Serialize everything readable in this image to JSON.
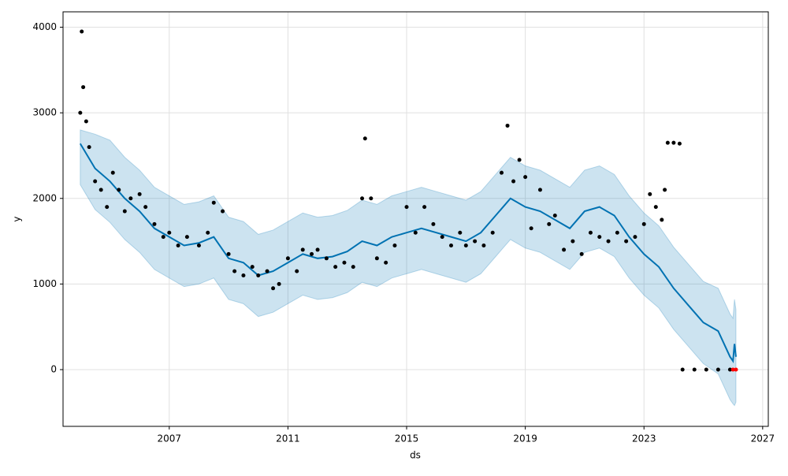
{
  "chart_data": {
    "type": "forecast",
    "xlabel": "ds",
    "ylabel": "y",
    "xlim": [
      2003.42,
      2027.19
    ],
    "ylim": [
      -663,
      4180
    ],
    "xticks": [
      2007,
      2011,
      2015,
      2019,
      2023,
      2027
    ],
    "yticks": [
      0,
      1000,
      2000,
      3000,
      4000
    ],
    "grid": true,
    "series": [
      {
        "kind": "scatter",
        "color": "#000000",
        "x": [
          2004.0,
          2004.05,
          2004.1,
          2004.2,
          2004.3,
          2004.5,
          2004.7,
          2004.9,
          2005.1,
          2005.3,
          2005.5,
          2005.7,
          2006.0,
          2006.2,
          2006.5,
          2006.8,
          2007.0,
          2007.3,
          2007.6,
          2008.0,
          2008.3,
          2008.5,
          2008.8,
          2009.0,
          2009.2,
          2009.5,
          2009.8,
          2010.0,
          2010.3,
          2010.5,
          2010.7,
          2011.0,
          2011.3,
          2011.5,
          2011.8,
          2012.0,
          2012.3,
          2012.6,
          2012.9,
          2013.2,
          2013.5,
          2013.6,
          2013.8,
          2014.0,
          2014.3,
          2014.6,
          2015.0,
          2015.3,
          2015.6,
          2015.9,
          2016.2,
          2016.5,
          2016.8,
          2017.0,
          2017.3,
          2017.6,
          2017.9,
          2018.2,
          2018.4,
          2018.6,
          2018.8,
          2019.0,
          2019.2,
          2019.5,
          2019.8,
          2020.0,
          2020.3,
          2020.6,
          2020.9,
          2021.2,
          2021.5,
          2021.8,
          2022.1,
          2022.4,
          2022.7,
          2023.0,
          2023.2,
          2023.4,
          2023.6,
          2023.7,
          2023.8,
          2024.0,
          2024.2,
          2024.3,
          2024.7,
          2025.1,
          2025.5,
          2025.9
        ],
        "values": [
          3000,
          3950,
          3300,
          2900,
          2600,
          2200,
          2100,
          1900,
          2300,
          2100,
          1850,
          2000,
          2050,
          1900,
          1700,
          1550,
          1600,
          1450,
          1550,
          1450,
          1600,
          1950,
          1850,
          1350,
          1150,
          1100,
          1200,
          1100,
          1150,
          950,
          1000,
          1300,
          1150,
          1400,
          1350,
          1400,
          1300,
          1200,
          1250,
          1200,
          2000,
          2700,
          2000,
          1300,
          1250,
          1450,
          1900,
          1600,
          1900,
          1700,
          1550,
          1450,
          1600,
          1450,
          1500,
          1450,
          1600,
          2300,
          2850,
          2200,
          2450,
          2250,
          1650,
          2100,
          1700,
          1800,
          1400,
          1500,
          1350,
          1600,
          1550,
          1500,
          1600,
          1500,
          1550,
          1700,
          2050,
          1900,
          1750,
          2100,
          2650,
          2650,
          2640,
          0,
          0,
          0,
          0,
          0
        ]
      },
      {
        "kind": "scatter",
        "color": "#ff0000",
        "x": [
          2026.0,
          2026.1
        ],
        "values": [
          0,
          0
        ]
      },
      {
        "kind": "line",
        "color": "#0072b2",
        "x": [
          2004.0,
          2004.5,
          2005,
          2005.5,
          2006,
          2006.5,
          2007,
          2007.5,
          2008,
          2008.5,
          2009,
          2009.5,
          2010,
          2010.5,
          2011,
          2011.5,
          2012,
          2012.5,
          2013,
          2013.5,
          2014,
          2014.5,
          2015,
          2015.5,
          2016,
          2016.5,
          2017,
          2017.5,
          2018,
          2018.5,
          2019,
          2019.5,
          2020,
          2020.5,
          2021,
          2021.5,
          2022,
          2022.5,
          2023,
          2023.5,
          2024,
          2024.5,
          2025,
          2025.5,
          2025.9,
          2026.0,
          2026.05,
          2026.1
        ],
        "values": [
          2640,
          2350,
          2200,
          2000,
          1850,
          1650,
          1550,
          1450,
          1480,
          1550,
          1300,
          1250,
          1100,
          1150,
          1250,
          1350,
          1300,
          1320,
          1380,
          1500,
          1450,
          1550,
          1600,
          1650,
          1600,
          1550,
          1500,
          1600,
          1800,
          2000,
          1900,
          1850,
          1750,
          1650,
          1850,
          1900,
          1800,
          1550,
          1350,
          1200,
          950,
          750,
          550,
          450,
          150,
          100,
          300,
          150
        ],
        "lower": [
          2160,
          1870,
          1720,
          1520,
          1370,
          1170,
          1070,
          970,
          1000,
          1070,
          820,
          770,
          620,
          670,
          770,
          870,
          820,
          840,
          900,
          1020,
          970,
          1070,
          1120,
          1170,
          1120,
          1070,
          1020,
          1120,
          1320,
          1520,
          1420,
          1370,
          1270,
          1170,
          1370,
          1420,
          1320,
          1070,
          870,
          720,
          470,
          270,
          70,
          -50,
          -350,
          -400,
          -420,
          -380
        ],
        "upper": [
          2800,
          2750,
          2680,
          2480,
          2330,
          2130,
          2030,
          1930,
          1960,
          2030,
          1780,
          1730,
          1580,
          1630,
          1730,
          1830,
          1780,
          1800,
          1860,
          1980,
          1930,
          2030,
          2080,
          2130,
          2080,
          2030,
          1980,
          2080,
          2280,
          2480,
          2380,
          2330,
          2230,
          2130,
          2330,
          2380,
          2280,
          2030,
          1830,
          1680,
          1430,
          1230,
          1030,
          950,
          650,
          600,
          820,
          700
        ]
      }
    ]
  }
}
